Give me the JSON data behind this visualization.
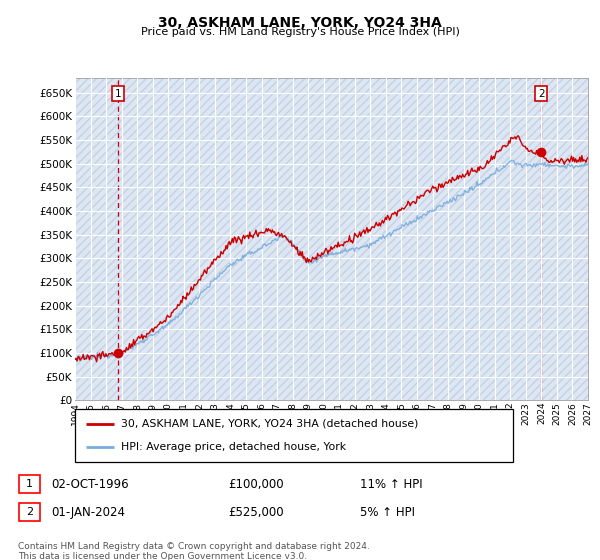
{
  "title": "30, ASKHAM LANE, YORK, YO24 3HA",
  "subtitle": "Price paid vs. HM Land Registry's House Price Index (HPI)",
  "ylabel_ticks": [
    "£0",
    "£50K",
    "£100K",
    "£150K",
    "£200K",
    "£250K",
    "£300K",
    "£350K",
    "£400K",
    "£450K",
    "£500K",
    "£550K",
    "£600K",
    "£650K"
  ],
  "ytick_values": [
    0,
    50000,
    100000,
    150000,
    200000,
    250000,
    300000,
    350000,
    400000,
    450000,
    500000,
    550000,
    600000,
    650000
  ],
  "ymin": 0,
  "ymax": 680000,
  "xmin_year": 1994,
  "xmax_year": 2027,
  "xtick_years": [
    1994,
    1995,
    1996,
    1997,
    1998,
    1999,
    2000,
    2001,
    2002,
    2003,
    2004,
    2005,
    2006,
    2007,
    2008,
    2009,
    2010,
    2011,
    2012,
    2013,
    2014,
    2015,
    2016,
    2017,
    2018,
    2019,
    2020,
    2021,
    2022,
    2023,
    2024,
    2025,
    2026,
    2027
  ],
  "bg_color": "#dde6f3",
  "hatch_color": "#c5d0e3",
  "grid_color": "#ffffff",
  "red_line_color": "#cc0000",
  "blue_line_color": "#7aacdc",
  "sale1_year": 1996.75,
  "sale1_price": 100000,
  "sale2_year": 2024.0,
  "sale2_price": 525000,
  "legend_label1": "30, ASKHAM LANE, YORK, YO24 3HA (detached house)",
  "legend_label2": "HPI: Average price, detached house, York",
  "note1_date": "02-OCT-1996",
  "note1_price": "£100,000",
  "note1_hpi": "11% ↑ HPI",
  "note2_date": "01-JAN-2024",
  "note2_price": "£525,000",
  "note2_hpi": "5% ↑ HPI",
  "footer": "Contains HM Land Registry data © Crown copyright and database right 2024.\nThis data is licensed under the Open Government Licence v3.0."
}
